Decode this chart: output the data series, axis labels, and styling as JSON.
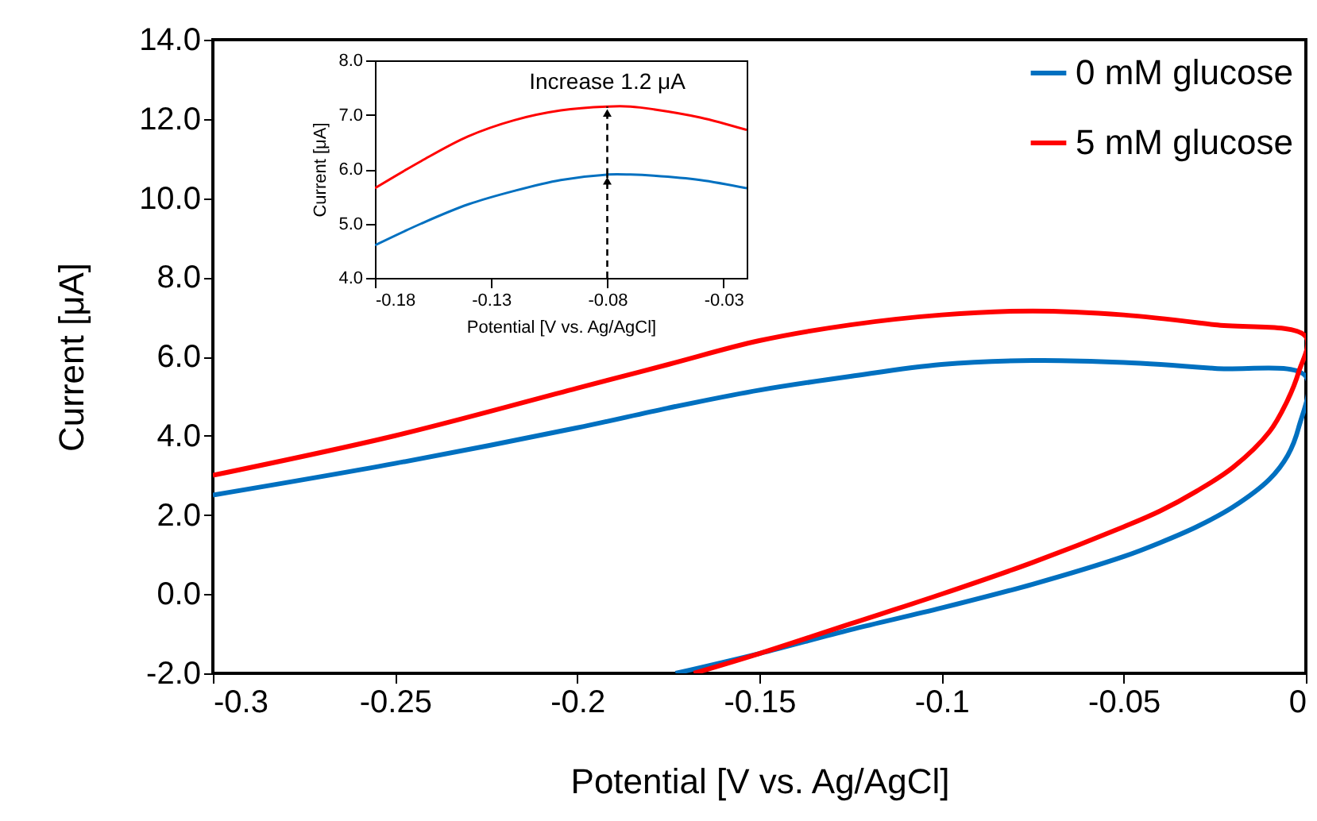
{
  "chart_data": [
    {
      "type": "line",
      "xlabel": "Potential [V vs. Ag/AgCl]",
      "ylabel": "Current [μA]",
      "xlim": [
        -0.3,
        0
      ],
      "ylim": [
        -2,
        14
      ],
      "xticks": [
        -0.3,
        -0.25,
        -0.2,
        -0.15,
        -0.1,
        -0.05,
        0
      ],
      "yticks": [
        {
          "value": -2,
          "label": "-2.0"
        },
        {
          "value": 0,
          "label": "0.0"
        },
        {
          "value": 2,
          "label": "2.0"
        },
        {
          "value": 4,
          "label": "4.0"
        },
        {
          "value": 6,
          "label": "6.0"
        },
        {
          "value": 8,
          "label": "8.0"
        },
        {
          "value": 10,
          "label": "10.0"
        },
        {
          "value": 12,
          "label": "12.0"
        },
        {
          "value": 14,
          "label": "14.0"
        }
      ],
      "legend": "top right",
      "series": [
        {
          "name": "0 mM glucose",
          "color": "#0070c0",
          "x": [
            -0.3,
            -0.25,
            -0.2,
            -0.175,
            -0.15,
            -0.125,
            -0.1,
            -0.075,
            -0.05,
            -0.025,
            0,
            -0.002,
            -0.005,
            -0.01,
            -0.02,
            -0.03,
            -0.04,
            -0.05,
            -0.075,
            -0.1,
            -0.125,
            -0.15,
            -0.173
          ],
          "values": [
            2.5,
            3.3,
            4.2,
            4.7,
            5.15,
            5.5,
            5.8,
            5.9,
            5.85,
            5.7,
            5.5,
            4.2,
            3.5,
            2.9,
            2.2,
            1.7,
            1.3,
            0.95,
            0.25,
            -0.35,
            -0.9,
            -1.5,
            -2.0
          ]
        },
        {
          "name": "5 mM glucose",
          "color": "#ff0000",
          "x": [
            -0.3,
            -0.25,
            -0.2,
            -0.175,
            -0.15,
            -0.125,
            -0.1,
            -0.075,
            -0.05,
            -0.025,
            0,
            -0.002,
            -0.005,
            -0.01,
            -0.02,
            -0.03,
            -0.04,
            -0.05,
            -0.075,
            -0.1,
            -0.125,
            -0.15,
            -0.168
          ],
          "values": [
            3.0,
            4.0,
            5.2,
            5.8,
            6.4,
            6.8,
            7.05,
            7.15,
            7.05,
            6.8,
            6.5,
            5.6,
            4.9,
            4.1,
            3.2,
            2.6,
            2.1,
            1.7,
            0.8,
            0.0,
            -0.75,
            -1.5,
            -2.0
          ]
        }
      ]
    },
    {
      "type": "line",
      "xlabel": "Potential [V vs. Ag/AgCl]",
      "ylabel": "Current [μA]",
      "xlim": [
        -0.18,
        -0.02
      ],
      "ylim": [
        4,
        8
      ],
      "xticks": [
        -0.18,
        -0.13,
        -0.08,
        -0.03
      ],
      "yticks": [
        {
          "value": 4,
          "label": "4.0"
        },
        {
          "value": 5,
          "label": "5.0"
        },
        {
          "value": 6,
          "label": "6.0"
        },
        {
          "value": 7,
          "label": "7.0"
        },
        {
          "value": 8,
          "label": "8.0"
        }
      ],
      "annotations": [
        "Increase 1.2 μA"
      ],
      "series": [
        {
          "color": "#0070c0",
          "x": [
            -0.18,
            -0.16,
            -0.14,
            -0.12,
            -0.1,
            -0.08,
            -0.07,
            -0.06,
            -0.04,
            -0.02
          ],
          "values": [
            4.6,
            5.0,
            5.35,
            5.6,
            5.8,
            5.9,
            5.9,
            5.88,
            5.8,
            5.65
          ]
        },
        {
          "color": "#ff0000",
          "x": [
            -0.18,
            -0.16,
            -0.14,
            -0.12,
            -0.1,
            -0.08,
            -0.07,
            -0.06,
            -0.04,
            -0.02
          ],
          "values": [
            5.65,
            6.15,
            6.6,
            6.9,
            7.08,
            7.15,
            7.15,
            7.1,
            6.95,
            6.72
          ]
        }
      ]
    }
  ]
}
